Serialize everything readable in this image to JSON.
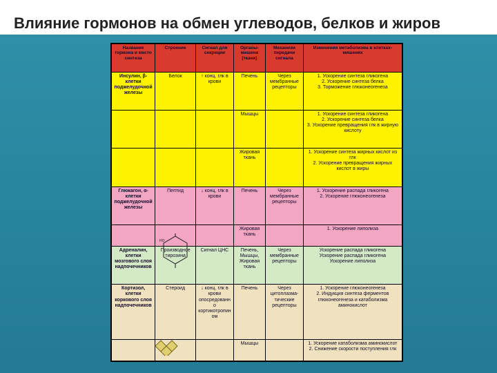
{
  "title": "Влияние гормонов на обмен углеводов, белков и жиров",
  "colors": {
    "band_top": "#2f8fa8",
    "band_bottom": "#237a93",
    "header_bg": "#d83a2e",
    "yellow": "#fff200",
    "pink": "#f2a6c2",
    "green": "#d4e9c6",
    "beige": "#f0e2bf",
    "text": "#120a2a"
  },
  "header": {
    "c1": "Название гормона и место синтеза",
    "c2": "Строение",
    "c3": "Сигнал для секреции",
    "c4": "Органы-мишени (ткани)",
    "c5": "Механизм передачи сигнала",
    "c6": "Изменения метаболизма в клетках-мишенях"
  },
  "rows": [
    {
      "cls": "sec-yellow",
      "c1": "Инсулин, β-клетки поджелудочной железы",
      "c2": "Белок",
      "c3": "↑ конц. глк в крови",
      "c4": "Печень",
      "c5": "Через мембранные рецепторы",
      "c6": "1. Ускорение синтеза гликогена\n2. Ускорение синтеза белка\n3. Торможение глюконеогенеза"
    },
    {
      "cls": "sec-yellow",
      "c1": "",
      "c2": "",
      "c3": "",
      "c4": "Мышцы",
      "c5": "",
      "c6": "1. Ускорение синтеза гликогена\n2. Ускорение синтеза белка\n3. Ускорение превращения глк в жирную кислоту"
    },
    {
      "cls": "sec-yellow",
      "c1": "",
      "c2": "",
      "c3": "",
      "c4": "Жировая ткань",
      "c5": "",
      "c6": "1. Ускорение синтеза жирных кислот из глк\n2. Ускорение превращения жирных кислот в жиры"
    },
    {
      "cls": "sec-pink",
      "c1": "Глюкагон, α-клетки поджелудочной железы",
      "c2": "Пептид",
      "c3": "↓ конц. глк в крови",
      "c4": "Печень",
      "c5": "Через мембранные рецепторы",
      "c6": "1. Ускорение распада гликогена\n2. Ускорение глюконеогенеза"
    },
    {
      "cls": "sec-pink",
      "c1": "",
      "c2": "",
      "c3": "",
      "c4": "Жировая ткань",
      "c5": "",
      "c6": "1. Ускорение липолиза"
    },
    {
      "cls": "sec-green",
      "c1": "Адреналин, клетки мозгового слоя надпочечников",
      "c2": "Производное тирозина",
      "c3": "Сигнал ЦНС",
      "c4": "Печень, Мышцы, Жировая ткань",
      "c5": "Через мембранные рецепторы",
      "c6": "Ускорение распада гликогена\nУскорение распада гликогена\nУскорение липолиза"
    },
    {
      "cls": "sec-beige",
      "c1": "Кортизол, клетки коркового слоя надпочечников",
      "c2": "Стероид",
      "c3": "↓ конц. глк в крови опосредованно кортикотропином",
      "c4": "Печень",
      "c5": "Через цитоплазма-тические рецепторы",
      "c6": "1. Ускорение глюконеогенеза\n2. Индукция синтеза ферментов глюконеогенеза и катаболизма аминокислот"
    },
    {
      "cls": "sec-beige",
      "c1": "",
      "c2": "",
      "c3": "",
      "c4": "Мышцы",
      "c5": "",
      "c6": "1. Ускорение катаболизма аминокислот\n2. Снижение скорости поступления глк"
    }
  ]
}
